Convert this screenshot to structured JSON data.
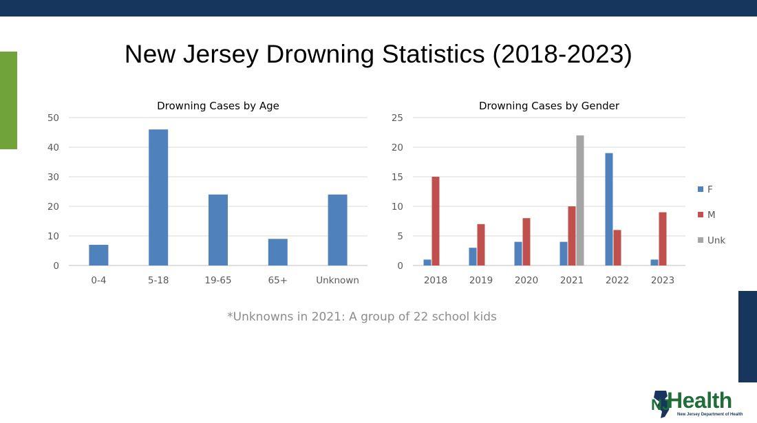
{
  "slide": {
    "title": "New Jersey Drowning Statistics (2018-2023)",
    "note": "*Unknowns in 2021: A group of 22 school kids",
    "logo_text": "Health",
    "logo_prefix": "NJ",
    "logo_subtitle": "New Jersey Department of Health"
  },
  "colors": {
    "header": "#17365d",
    "accent_green": "#70a43a",
    "series_F": "#4f81bd",
    "series_M": "#c0504d",
    "series_Unk": "#a5a5a5",
    "grid": "#d9d9d9",
    "tick_text": "#595959"
  },
  "chart_data": [
    {
      "type": "bar",
      "title": "Drowning Cases by Age",
      "categories": [
        "0-4",
        "5-18",
        "19-65",
        "65+",
        "Unknown"
      ],
      "values": [
        7,
        46,
        24,
        9,
        24
      ],
      "ylim": [
        0,
        50
      ],
      "yticks": [
        0,
        10,
        20,
        30,
        40,
        50
      ],
      "grid": true,
      "legend": "none"
    },
    {
      "type": "bar",
      "title": "Drowning Cases by Gender",
      "categories": [
        "2018",
        "2019",
        "2020",
        "2021",
        "2022",
        "2023"
      ],
      "series": [
        {
          "name": "F",
          "values": [
            1,
            3,
            4,
            4,
            19,
            1
          ]
        },
        {
          "name": "M",
          "values": [
            15,
            7,
            8,
            10,
            6,
            9
          ]
        },
        {
          "name": "Unk",
          "values": [
            0,
            0,
            0,
            22,
            0,
            0
          ]
        }
      ],
      "ylim": [
        0,
        25
      ],
      "yticks": [
        0,
        5,
        10,
        15,
        20,
        25
      ],
      "grid": true,
      "legend": "right"
    }
  ]
}
